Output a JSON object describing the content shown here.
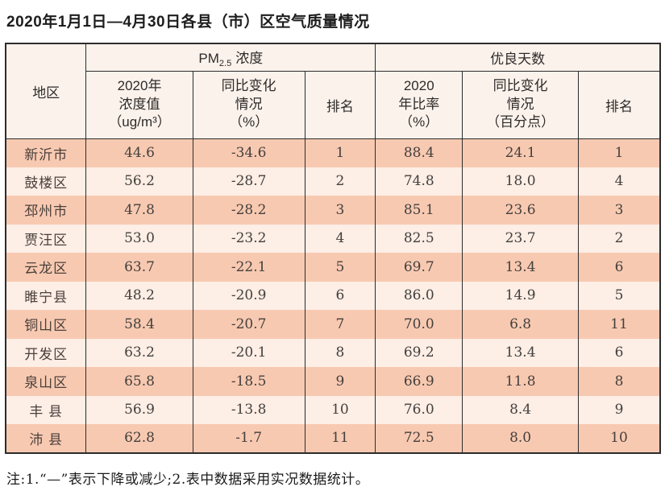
{
  "page": {
    "title": "2020年1月1日—4月30日各县（市）区空气质量情况",
    "note": "注:1.“—”表示下降或减少;2.表中数据采用实况数据统计。"
  },
  "colors": {
    "row_odd_bg": "#f8c9b1",
    "row_even_bg": "#fdeee6",
    "header_bg": "#fbf2ec",
    "border": "#2c2c2c",
    "text": "#43403d"
  },
  "table": {
    "header": {
      "region": "地区",
      "pm_group_prefix": "PM",
      "pm_group_sub": "2.5",
      "pm_group_suffix": "浓度",
      "good_days_group": "优良天数",
      "pm_value": "2020年\n浓度值\n（ug/m³）",
      "pm_change": "同比变化\n情况\n（%）",
      "pm_rank": "排名",
      "ratio": "2020\n年比率\n（%）",
      "ratio_change": "同比变化\n情况\n（百分点）",
      "ratio_rank": "排名"
    },
    "rows": [
      {
        "region": "新沂市",
        "pm_value": "44.6",
        "pm_change": "-34.6",
        "pm_rank": "1",
        "ratio": "88.4",
        "ratio_change": "24.1",
        "ratio_rank": "1"
      },
      {
        "region": "鼓楼区",
        "pm_value": "56.2",
        "pm_change": "-28.7",
        "pm_rank": "2",
        "ratio": "74.8",
        "ratio_change": "18.0",
        "ratio_rank": "4"
      },
      {
        "region": "邳州市",
        "pm_value": "47.8",
        "pm_change": "-28.2",
        "pm_rank": "3",
        "ratio": "85.1",
        "ratio_change": "23.6",
        "ratio_rank": "3"
      },
      {
        "region": "贾汪区",
        "pm_value": "53.0",
        "pm_change": "-23.2",
        "pm_rank": "4",
        "ratio": "82.5",
        "ratio_change": "23.7",
        "ratio_rank": "2"
      },
      {
        "region": "云龙区",
        "pm_value": "63.7",
        "pm_change": "-22.1",
        "pm_rank": "5",
        "ratio": "69.7",
        "ratio_change": "13.4",
        "ratio_rank": "6"
      },
      {
        "region": "睢宁县",
        "pm_value": "48.2",
        "pm_change": "-20.9",
        "pm_rank": "6",
        "ratio": "86.0",
        "ratio_change": "14.9",
        "ratio_rank": "5"
      },
      {
        "region": "铜山区",
        "pm_value": "58.4",
        "pm_change": "-20.7",
        "pm_rank": "7",
        "ratio": "70.0",
        "ratio_change": "6.8",
        "ratio_rank": "11"
      },
      {
        "region": "开发区",
        "pm_value": "63.2",
        "pm_change": "-20.1",
        "pm_rank": "8",
        "ratio": "69.2",
        "ratio_change": "13.4",
        "ratio_rank": "6"
      },
      {
        "region": "泉山区",
        "pm_value": "65.8",
        "pm_change": "-18.5",
        "pm_rank": "9",
        "ratio": "66.9",
        "ratio_change": "11.8",
        "ratio_rank": "8"
      },
      {
        "region": "丰 县",
        "pm_value": "56.9",
        "pm_change": "-13.8",
        "pm_rank": "10",
        "ratio": "76.0",
        "ratio_change": "8.4",
        "ratio_rank": "9"
      },
      {
        "region": "沛 县",
        "pm_value": "62.8",
        "pm_change": "-1.7",
        "pm_rank": "11",
        "ratio": "72.5",
        "ratio_change": "8.0",
        "ratio_rank": "10"
      }
    ]
  }
}
